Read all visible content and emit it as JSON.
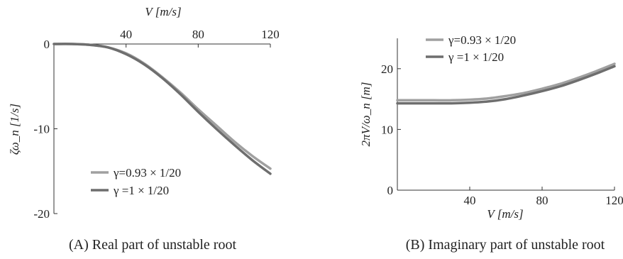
{
  "chart_data": [
    {
      "type": "line",
      "caption": "(A) Real part of unstable root",
      "xlabel": "V  [m/s]",
      "ylabel": "ζω_n  [1/s]",
      "xlim": [
        0,
        120
      ],
      "ylim": [
        -20,
        0
      ],
      "xticks": [
        40,
        80,
        120
      ],
      "xtick_labels": [
        "40",
        "80",
        "120"
      ],
      "yticks": [
        0,
        -10,
        -20
      ],
      "ytick_labels": [
        "0",
        "-10",
        "-20"
      ],
      "x_axis_position": "top",
      "grid": false,
      "legend_position": "bottom-left",
      "series": [
        {
          "name": "γ=0.93 × 1/20",
          "color": "#a0a0a0",
          "x": [
            0,
            10,
            20,
            30,
            40,
            50,
            60,
            70,
            80,
            90,
            100,
            110,
            120
          ],
          "y": [
            0,
            0,
            -0.1,
            -0.4,
            -1.1,
            -2.3,
            -3.9,
            -5.7,
            -7.7,
            -9.6,
            -11.5,
            -13.2,
            -14.7
          ]
        },
        {
          "name": "γ =1 × 1/20",
          "color": "#6e6e6e",
          "x": [
            0,
            10,
            20,
            30,
            40,
            50,
            60,
            70,
            80,
            90,
            100,
            110,
            120
          ],
          "y": [
            0,
            0,
            -0.1,
            -0.4,
            -1.2,
            -2.4,
            -4.0,
            -5.9,
            -8.0,
            -10.0,
            -11.9,
            -13.7,
            -15.3
          ]
        }
      ]
    },
    {
      "type": "line",
      "caption": "(B) Imaginary part of unstable root",
      "xlabel": "V  [m/s]",
      "ylabel": "2πV/ω_n  [m]",
      "xlim": [
        0,
        120
      ],
      "ylim": [
        0,
        25
      ],
      "xticks": [
        40,
        80,
        120
      ],
      "xtick_labels": [
        "40",
        "80",
        "120"
      ],
      "yticks": [
        0,
        10,
        20
      ],
      "ytick_labels": [
        "0",
        "10",
        "20"
      ],
      "x_axis_position": "bottom",
      "grid": false,
      "legend_position": "top-left",
      "series": [
        {
          "name": "γ=0.93 × 1/20",
          "color": "#a0a0a0",
          "x": [
            0,
            10,
            20,
            30,
            40,
            50,
            60,
            70,
            80,
            90,
            100,
            110,
            120
          ],
          "y": [
            14.8,
            14.8,
            14.8,
            14.8,
            14.9,
            15.1,
            15.5,
            16.0,
            16.7,
            17.5,
            18.5,
            19.6,
            20.8
          ]
        },
        {
          "name": "γ =1 × 1/20",
          "color": "#6e6e6e",
          "x": [
            0,
            10,
            20,
            30,
            40,
            50,
            60,
            70,
            80,
            90,
            100,
            110,
            120
          ],
          "y": [
            14.3,
            14.3,
            14.3,
            14.3,
            14.4,
            14.6,
            15.0,
            15.6,
            16.3,
            17.1,
            18.1,
            19.2,
            20.4
          ]
        }
      ]
    }
  ]
}
